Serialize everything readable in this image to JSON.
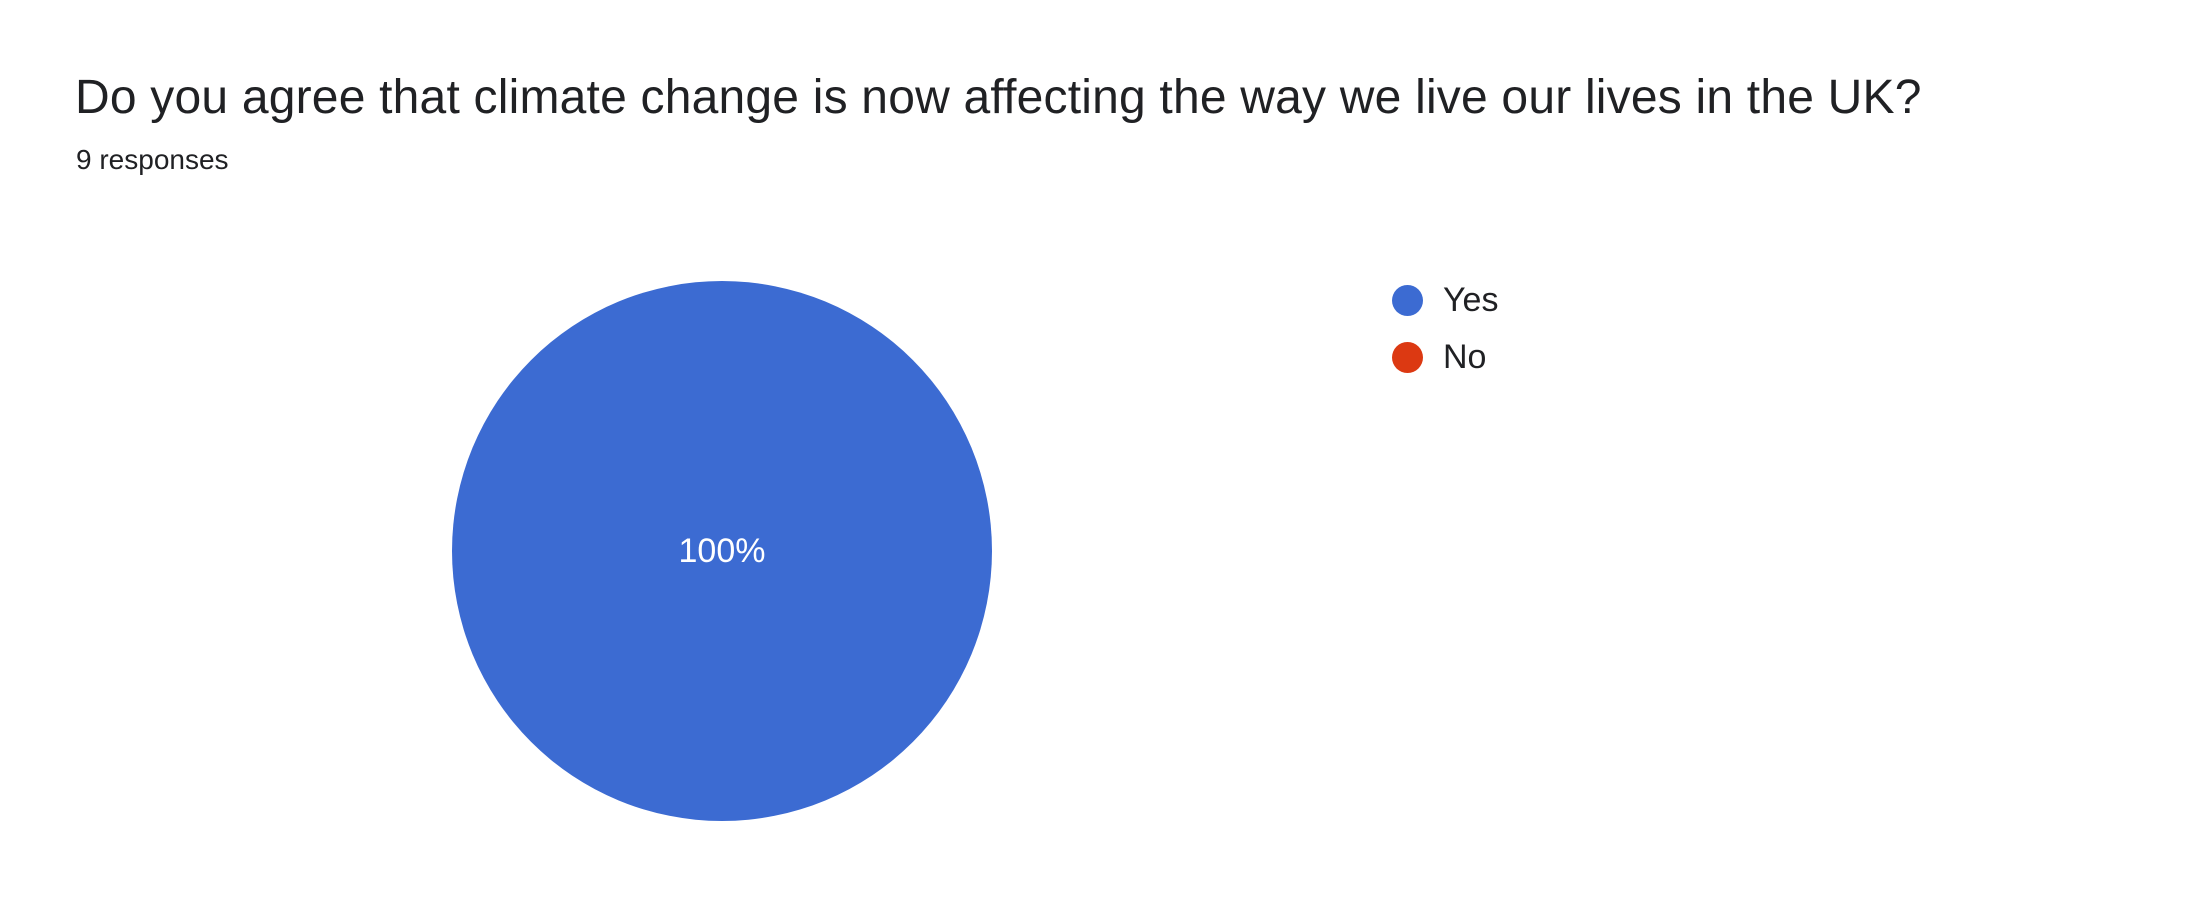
{
  "colors": {
    "background": "#ffffff",
    "text": "#202124",
    "pie_label_text": "#ffffff"
  },
  "chart_data": {
    "type": "pie",
    "title": "Do you agree that climate change is now affecting the way we live our lives in the UK?",
    "subtitle": "9 responses",
    "total_responses": 9,
    "legend_position": "right",
    "grid": false,
    "slices": [
      {
        "label": "Yes",
        "percent": 100,
        "percent_label": "100%",
        "value": 9,
        "color": "#3C6BD2"
      },
      {
        "label": "No",
        "percent": 0,
        "value": 0,
        "color": "#DC3912"
      }
    ]
  }
}
